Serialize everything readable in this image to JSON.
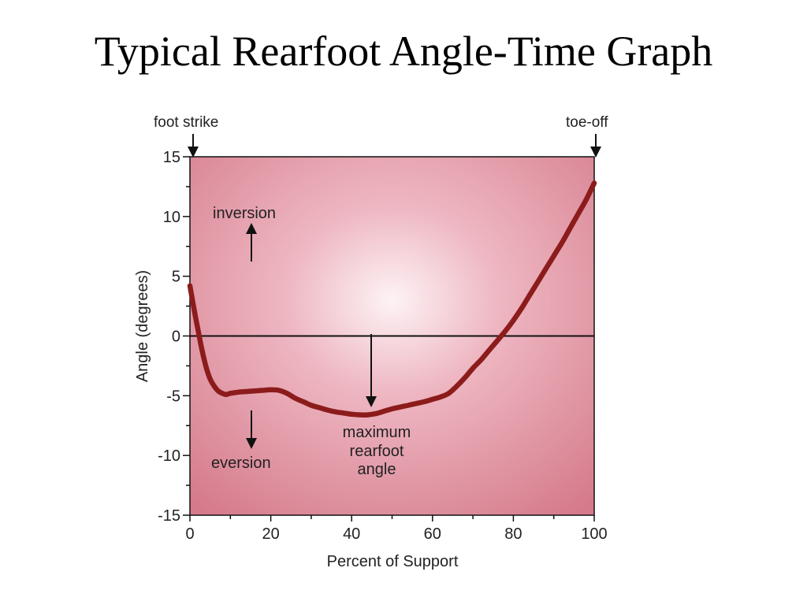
{
  "slide": {
    "title": "Typical Rearfoot Angle-Time Graph"
  },
  "chart_data": {
    "type": "line",
    "xlabel": "Percent of Support",
    "ylabel": "Angle (degrees)",
    "xlim": [
      0,
      100
    ],
    "ylim": [
      -15,
      15
    ],
    "x_ticks": [
      "0",
      "20",
      "40",
      "60",
      "80",
      "100"
    ],
    "y_ticks": [
      "15",
      "10",
      "5",
      "0",
      "-5",
      "-10",
      "-15"
    ],
    "series": [
      {
        "x": [
          0,
          1,
          2,
          3,
          4,
          5,
          6,
          7,
          8,
          9,
          10,
          12,
          14,
          16,
          18,
          20,
          22,
          24,
          26,
          28,
          30,
          32,
          34,
          36,
          38,
          40,
          42,
          44,
          46,
          48,
          50,
          52,
          54,
          56,
          58,
          60,
          62,
          64,
          66,
          68,
          70,
          72,
          74,
          76,
          78,
          80,
          82,
          84,
          86,
          88,
          90,
          92,
          94,
          96,
          98,
          100
        ],
        "y": [
          4.2,
          2.3,
          0.5,
          -1.2,
          -2.6,
          -3.6,
          -4.2,
          -4.6,
          -4.8,
          -4.9,
          -4.8,
          -4.7,
          -4.65,
          -4.6,
          -4.55,
          -4.5,
          -4.55,
          -4.8,
          -5.2,
          -5.5,
          -5.8,
          -6.0,
          -6.2,
          -6.35,
          -6.45,
          -6.55,
          -6.6,
          -6.6,
          -6.5,
          -6.3,
          -6.1,
          -5.95,
          -5.8,
          -5.65,
          -5.5,
          -5.3,
          -5.1,
          -4.8,
          -4.2,
          -3.5,
          -2.7,
          -2.0,
          -1.2,
          -0.4,
          0.4,
          1.3,
          2.3,
          3.4,
          4.5,
          5.6,
          6.7,
          7.8,
          9.0,
          10.2,
          11.4,
          12.8
        ],
        "color": "#8c1c1c"
      }
    ],
    "annotations": {
      "foot_strike": "foot strike",
      "toe_off": "toe-off",
      "inversion": "inversion",
      "eversion": "eversion",
      "max_angle": [
        "maximum",
        "rearfoot",
        "angle"
      ]
    },
    "background_color": "#dc8a98",
    "grid": false
  }
}
